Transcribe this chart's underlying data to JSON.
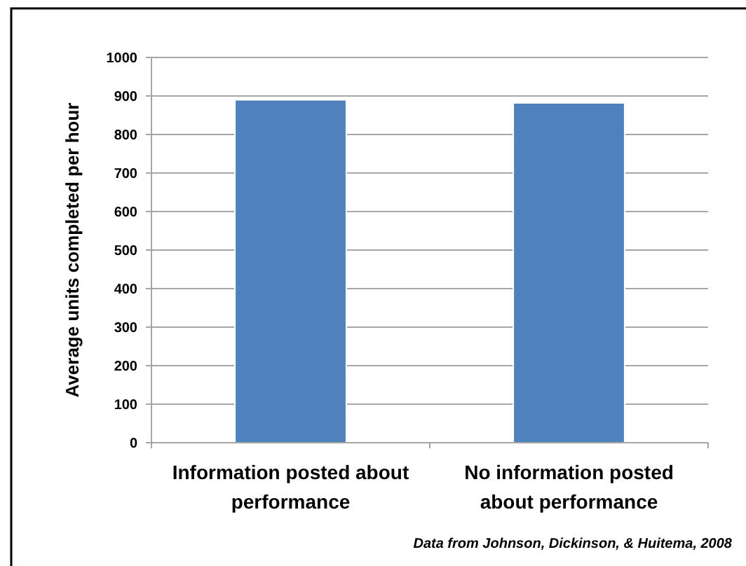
{
  "chart_data": {
    "type": "bar",
    "ylabel": "Average units completed per hour",
    "categories": [
      "Information posted about performance",
      "No information posted about performance"
    ],
    "values": [
      890,
      882
    ],
    "color": "#4f81bd",
    "ylim": [
      0,
      1000
    ],
    "yticks": [
      0,
      100,
      200,
      300,
      400,
      500,
      600,
      700,
      800,
      900,
      1000
    ],
    "grid": "y",
    "annotations": [
      "Data from Johnson, Dickinson, & Huitema, 2008"
    ]
  }
}
